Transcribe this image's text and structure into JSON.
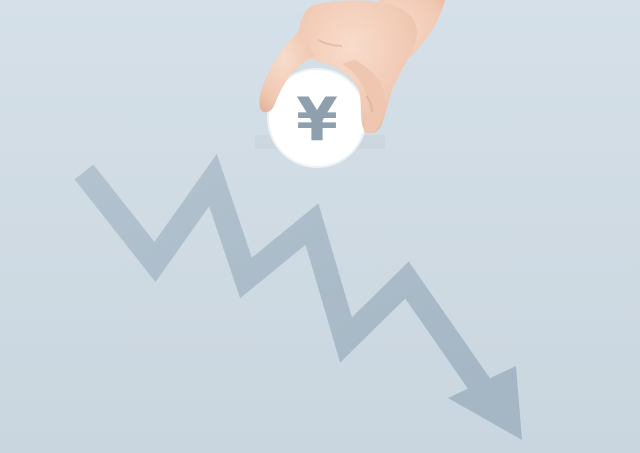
{
  "scene": {
    "background_color": "#d0dbe4",
    "arrow_color": "#a9bac8",
    "coin_color": "#ffffff",
    "symbol_color": "#8e9fae",
    "skin_color": "#f3d2bf",
    "coin_symbol": "¥",
    "elements": [
      "downward-zigzag-arrow",
      "yen-coin",
      "hand"
    ]
  }
}
